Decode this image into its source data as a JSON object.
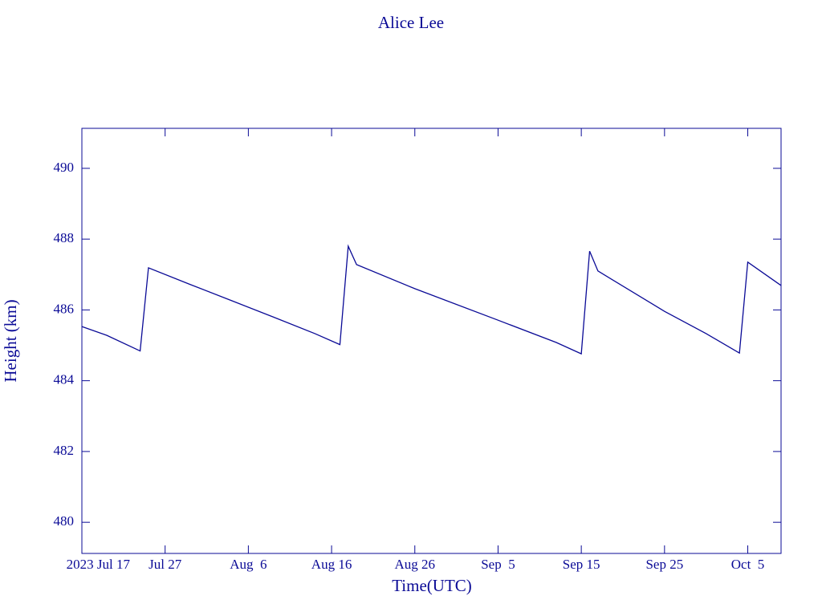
{
  "chart_data": {
    "type": "line",
    "title": "Alice Lee",
    "x_label": "Time(UTC)",
    "y_label": "Height (km)",
    "x": [
      "2023-07-17",
      "2023-07-20",
      "2023-07-24",
      "2023-07-25",
      "2023-07-30",
      "2023-08-04",
      "2023-08-09",
      "2023-08-14",
      "2023-08-17",
      "2023-08-18",
      "2023-08-19",
      "2023-08-26",
      "2023-09-05",
      "2023-09-12",
      "2023-09-15",
      "2023-09-16",
      "2023-09-17",
      "2023-09-25",
      "2023-09-30",
      "2023-10-04",
      "2023-10-05",
      "2023-10-09"
    ],
    "series": [
      {
        "name": "Height",
        "color": "#0a0a96",
        "values": [
          485.53,
          485.28,
          484.84,
          487.19,
          486.72,
          486.26,
          485.8,
          485.33,
          485.02,
          487.8,
          487.28,
          486.6,
          485.71,
          485.08,
          484.76,
          487.66,
          487.1,
          485.96,
          485.33,
          484.78,
          487.35,
          486.69
        ]
      }
    ],
    "xlim": [
      "2023-07-17",
      "2023-10-09"
    ],
    "xticks": [
      {
        "value": "2023-07-17",
        "label": "2023 Jul 17"
      },
      {
        "value": "2023-07-27",
        "label": "Jul 27"
      },
      {
        "value": "2023-08-06",
        "label": "Aug  6"
      },
      {
        "value": "2023-08-16",
        "label": "Aug 16"
      },
      {
        "value": "2023-08-26",
        "label": "Aug 26"
      },
      {
        "value": "2023-09-05",
        "label": "Sep  5"
      },
      {
        "value": "2023-09-15",
        "label": "Sep 15"
      },
      {
        "value": "2023-09-25",
        "label": "Sep 25"
      },
      {
        "value": "2023-10-05",
        "label": "Oct  5"
      }
    ],
    "ylim": [
      479.12,
      491.13
    ],
    "yticks": [
      480,
      482,
      484,
      486,
      488,
      490
    ],
    "grid": false
  }
}
